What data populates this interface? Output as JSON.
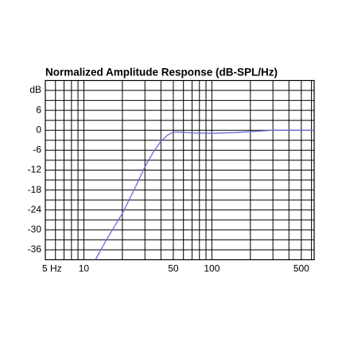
{
  "chart_data": {
    "type": "line",
    "title": "Normalized Amplitude Response (dB-SPL/Hz)",
    "log_x": true,
    "grid": true,
    "xlim": [
      5,
      630
    ],
    "ylim": [
      -39,
      15
    ],
    "xticks": [
      {
        "value": 5,
        "label": "5 Hz"
      },
      10,
      50,
      100,
      500
    ],
    "xminor": [
      6,
      7,
      8,
      9,
      20,
      30,
      40,
      60,
      70,
      80,
      90,
      200,
      300,
      400,
      600
    ],
    "yticks": [
      {
        "value": 12,
        "label": "dB"
      },
      6,
      0,
      -6,
      -12,
      -18,
      -24,
      -30,
      -36
    ],
    "yminor": [
      9,
      3,
      -3,
      -9,
      -15,
      -21,
      -27,
      -33
    ],
    "x": [
      12.3,
      15,
      20,
      25,
      30,
      35,
      40,
      45,
      50,
      60,
      70,
      100,
      150,
      200,
      300,
      400,
      630
    ],
    "series": [
      {
        "color": "#6a6ae0",
        "values": [
          -39,
          -33,
          -25,
          -17.5,
          -11,
          -6.5,
          -3.3,
          -1.5,
          -0.5,
          -0.6,
          -0.8,
          -0.9,
          -0.7,
          -0.4,
          0,
          0,
          0
        ]
      }
    ]
  }
}
